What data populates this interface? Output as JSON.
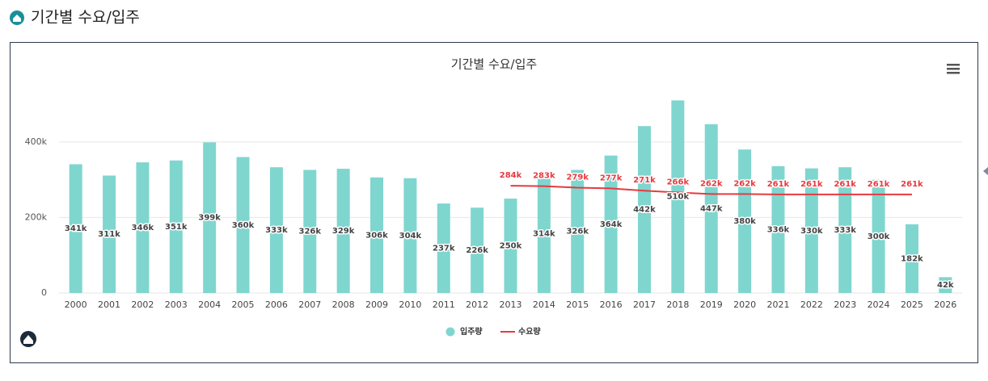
{
  "page": {
    "title": "기간별 수요/입주"
  },
  "chart_data": {
    "type": "bar_line",
    "title": "기간별 수요/입주",
    "categories": [
      "2000",
      "2001",
      "2002",
      "2003",
      "2004",
      "2005",
      "2006",
      "2007",
      "2008",
      "2009",
      "2010",
      "2011",
      "2012",
      "2013",
      "2014",
      "2015",
      "2016",
      "2017",
      "2018",
      "2019",
      "2020",
      "2021",
      "2022",
      "2023",
      "2024",
      "2025",
      "2026"
    ],
    "series": [
      {
        "name": "입주량",
        "type": "bar",
        "color": "#7fd6cf",
        "values": [
          341000,
          311000,
          346000,
          351000,
          399000,
          360000,
          333000,
          326000,
          329000,
          306000,
          304000,
          237000,
          226000,
          250000,
          314000,
          326000,
          364000,
          442000,
          510000,
          447000,
          380000,
          336000,
          330000,
          333000,
          300000,
          182000,
          42000
        ],
        "value_labels": [
          "341k",
          "311k",
          "346k",
          "351k",
          "399k",
          "360k",
          "333k",
          "326k",
          "329k",
          "306k",
          "304k",
          "237k",
          "226k",
          "250k",
          "314k",
          "326k",
          "364k",
          "442k",
          "510k",
          "447k",
          "380k",
          "336k",
          "330k",
          "333k",
          "300k",
          "182k",
          "42k"
        ]
      },
      {
        "name": "수요량",
        "type": "line",
        "color": "#e8393f",
        "values": [
          null,
          null,
          null,
          null,
          null,
          null,
          null,
          null,
          null,
          null,
          null,
          null,
          null,
          284000,
          283000,
          279000,
          277000,
          271000,
          266000,
          262000,
          262000,
          261000,
          261000,
          261000,
          261000,
          261000,
          null
        ],
        "value_labels": [
          null,
          null,
          null,
          null,
          null,
          null,
          null,
          null,
          null,
          null,
          null,
          null,
          null,
          "284k",
          "283k",
          "279k",
          "277k",
          "271k",
          "266k",
          "262k",
          "262k",
          "261k",
          "261k",
          "261k",
          "261k",
          "261k",
          null
        ]
      }
    ],
    "ylim": [
      0,
      560000
    ],
    "yticks": [
      0,
      {
        "value": 200000,
        "label": "200k"
      },
      {
        "value": 400000,
        "label": "400k"
      }
    ],
    "grid": true,
    "legend": "bottom"
  }
}
